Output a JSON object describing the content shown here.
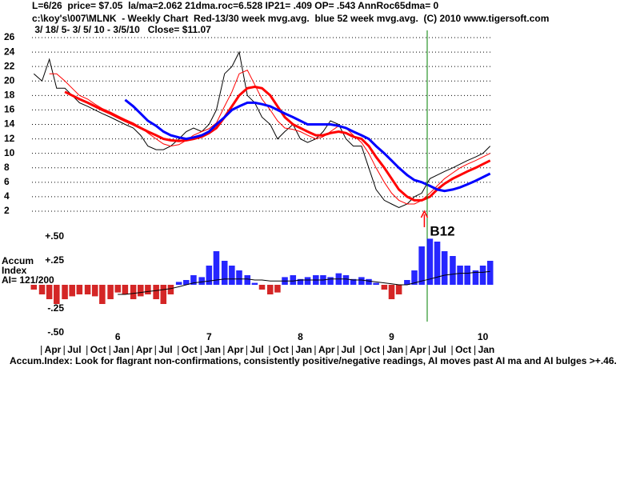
{
  "header": [
    "L=6/26  price= $7.05  la/ma=2.062 21dma.roc=6.528 IP21= .409 OP= .543 AnnRoc65dma= 0",
    "c:\\koy's\\007\\MLNK  - Weekly Chart  Red-13/30 week mvg.avg.  blue 52 week mvg.avg.  (C) 2010 www.tigersoft.com",
    " 3/ 18/ 5- 3/ 5/ 10 - 3/5/10   Close= $11.07"
  ],
  "footer": "Accum.Index: Look for flagrant non-confirmations, consistently positive/negative readings, AI moves past AI ma and AI bulges >+.46.",
  "chart_data": [
    {
      "type": "line",
      "x": [
        5.08,
        5.17,
        5.25,
        5.33,
        5.42,
        5.5,
        5.58,
        5.67,
        5.75,
        5.83,
        5.92,
        6.0,
        6.08,
        6.17,
        6.25,
        6.33,
        6.42,
        6.5,
        6.58,
        6.67,
        6.75,
        6.83,
        6.92,
        7.0,
        7.08,
        7.17,
        7.25,
        7.33,
        7.42,
        7.5,
        7.58,
        7.67,
        7.75,
        7.83,
        7.92,
        8.0,
        8.08,
        8.17,
        8.25,
        8.33,
        8.42,
        8.5,
        8.58,
        8.67,
        8.75,
        8.83,
        8.92,
        9.0,
        9.08,
        9.17,
        9.25,
        9.33,
        9.42,
        9.5,
        9.58,
        9.67,
        9.75,
        9.83,
        9.92,
        10.0,
        10.08
      ],
      "xlim": [
        5.06,
        10.1
      ],
      "ylim": [
        2,
        26
      ],
      "yticks": [
        2,
        4,
        6,
        8,
        10,
        12,
        14,
        16,
        18,
        20,
        22,
        24,
        26
      ],
      "grid": true,
      "vline": {
        "x": 9.39,
        "color": "#008000"
      },
      "series": [
        {
          "color": "#000000",
          "width": 1,
          "values": [
            21,
            20,
            23,
            19,
            19,
            18,
            17,
            16.5,
            16,
            15.5,
            15,
            14.5,
            14,
            13.5,
            12.5,
            11,
            10.5,
            10.5,
            11,
            12,
            13,
            13.5,
            13,
            14,
            16,
            21,
            22,
            24,
            18,
            17,
            15,
            14,
            12,
            13,
            14,
            12,
            11.5,
            12,
            13,
            14.5,
            14,
            12,
            11,
            11,
            8,
            5,
            3.5,
            3,
            2.5,
            3,
            4,
            4.5,
            6.5,
            7,
            7.5,
            8,
            8.5,
            9,
            9.5,
            10,
            11
          ]
        },
        {
          "color": "#ff0000",
          "width": 1,
          "values": [
            null,
            null,
            21,
            21,
            20,
            19,
            18,
            17.5,
            16.8,
            16.2,
            15.7,
            15.2,
            14.7,
            14.2,
            13.6,
            12.8,
            12,
            11.3,
            11,
            11.2,
            11.8,
            12.5,
            13,
            13.4,
            14.2,
            16.5,
            18.5,
            21,
            21.5,
            19.5,
            17.5,
            16,
            14.5,
            13.5,
            13.3,
            13,
            12.5,
            12,
            12.3,
            13,
            13.8,
            13.5,
            12.5,
            11.5,
            10,
            8,
            6,
            4.5,
            3.5,
            3,
            3,
            3.5,
            4.5,
            5.5,
            6.5,
            7.3,
            8,
            8.5,
            9,
            9.5,
            10
          ]
        },
        {
          "color": "#ff0000",
          "width": 3,
          "values": [
            null,
            null,
            null,
            null,
            18.5,
            18,
            17.5,
            17,
            16.5,
            16,
            15.5,
            15,
            14.5,
            14,
            13.5,
            13,
            12.5,
            12,
            11.8,
            11.7,
            11.8,
            12,
            12.3,
            12.8,
            13.5,
            15,
            16.5,
            18,
            19,
            19.2,
            19,
            18,
            16.5,
            15,
            14,
            13.5,
            13,
            12.5,
            12.5,
            12.8,
            13,
            12.8,
            12.3,
            12,
            11,
            9.5,
            8,
            6.5,
            5,
            4,
            3.5,
            3.5,
            4,
            5,
            5.8,
            6.5,
            7,
            7.5,
            8,
            8.5,
            9
          ]
        },
        {
          "color": "#0000ff",
          "width": 3,
          "values": [
            null,
            null,
            null,
            null,
            null,
            null,
            null,
            null,
            null,
            null,
            null,
            null,
            17.4,
            16.5,
            15.5,
            14.5,
            13.8,
            13,
            12.5,
            12.2,
            12,
            12.2,
            12.5,
            13,
            14,
            15,
            16,
            16.5,
            17,
            17,
            16.8,
            16.5,
            16,
            15.5,
            15,
            14.5,
            14,
            14,
            14,
            14,
            13.8,
            13.5,
            13,
            12.5,
            12,
            11,
            10,
            9,
            8,
            7,
            6.3,
            6,
            5.5,
            5,
            4.8,
            5,
            5.3,
            5.7,
            6.2,
            6.7,
            7.2
          ]
        }
      ]
    },
    {
      "type": "bar",
      "labels": [
        "Accum",
        "Index",
        "AI= 121/200"
      ],
      "annotation": {
        "text": "B12",
        "x": 9.42,
        "color": "#ff0000"
      },
      "x": [
        5.08,
        5.17,
        5.25,
        5.33,
        5.42,
        5.5,
        5.58,
        5.67,
        5.75,
        5.83,
        5.92,
        6.0,
        6.08,
        6.17,
        6.25,
        6.33,
        6.42,
        6.5,
        6.58,
        6.67,
        6.75,
        6.83,
        6.92,
        7.0,
        7.08,
        7.17,
        7.25,
        7.33,
        7.42,
        7.5,
        7.58,
        7.67,
        7.75,
        7.83,
        7.92,
        8.0,
        8.08,
        8.17,
        8.25,
        8.33,
        8.42,
        8.5,
        8.58,
        8.67,
        8.75,
        8.83,
        8.92,
        9.0,
        9.08,
        9.17,
        9.25,
        9.33,
        9.42,
        9.5,
        9.58,
        9.67,
        9.75,
        9.83,
        9.92,
        10.0,
        10.08
      ],
      "xlim": [
        5.06,
        10.1
      ],
      "ylim": [
        -0.5,
        0.5
      ],
      "yticks": [
        {
          "value": 0.5,
          "label": "+.50"
        },
        {
          "value": 0.25,
          "label": "+.25"
        },
        {
          "value": -0.25,
          "label": "-.25"
        },
        {
          "value": -0.5,
          "label": "-.50"
        }
      ],
      "xticks": [
        6,
        7,
        8,
        9,
        10
      ],
      "month_ticks": [
        {
          "value": 5.25,
          "label": "Apr"
        },
        {
          "value": 5.5,
          "label": "Jul"
        },
        {
          "value": 5.75,
          "label": "Oct"
        },
        {
          "value": 6.0,
          "label": "Jan"
        },
        {
          "value": 6.25,
          "label": "Apr"
        },
        {
          "value": 6.5,
          "label": "Jul"
        },
        {
          "value": 6.75,
          "label": "Oct"
        },
        {
          "value": 7.0,
          "label": "Jan"
        },
        {
          "value": 7.25,
          "label": "Apr"
        },
        {
          "value": 7.5,
          "label": "Jul"
        },
        {
          "value": 7.75,
          "label": "Oct"
        },
        {
          "value": 8.0,
          "label": "Jan"
        },
        {
          "value": 8.25,
          "label": "Apr"
        },
        {
          "value": 8.5,
          "label": "Jul"
        },
        {
          "value": 8.75,
          "label": "Oct"
        },
        {
          "value": 9.0,
          "label": "Jan"
        },
        {
          "value": 9.25,
          "label": "Apr"
        },
        {
          "value": 9.5,
          "label": "Jul"
        },
        {
          "value": 9.75,
          "label": "Oct"
        },
        {
          "value": 10.0,
          "label": "Jan"
        }
      ],
      "series": [
        {
          "color": "#0000ff",
          "negative_color": "#cc0000",
          "values": [
            -0.05,
            -0.1,
            -0.15,
            -0.2,
            -0.15,
            -0.12,
            -0.1,
            -0.1,
            -0.12,
            -0.2,
            -0.15,
            -0.08,
            -0.1,
            -0.15,
            -0.12,
            -0.1,
            -0.15,
            -0.2,
            -0.1,
            0.03,
            0.05,
            0.1,
            0.08,
            0.2,
            0.35,
            0.25,
            0.2,
            0.15,
            0.1,
            0.02,
            -0.05,
            -0.1,
            -0.08,
            0.08,
            0.1,
            0.06,
            0.08,
            0.1,
            0.1,
            0.08,
            0.12,
            0.1,
            0.06,
            0.08,
            0.06,
            0.02,
            -0.05,
            -0.15,
            -0.1,
            0.05,
            0.15,
            0.4,
            0.48,
            0.45,
            0.35,
            0.3,
            0.2,
            0.2,
            0.15,
            0.2,
            0.25
          ]
        },
        {
          "type": "line",
          "color": "#000000",
          "values": [
            null,
            null,
            null,
            null,
            null,
            null,
            null,
            null,
            null,
            null,
            null,
            -0.1,
            -0.1,
            -0.09,
            -0.08,
            -0.07,
            -0.06,
            -0.05,
            -0.04,
            -0.02,
            0,
            0.02,
            0.03,
            0.04,
            0.05,
            0.06,
            0.06,
            0.06,
            0.06,
            0.05,
            0.05,
            0.04,
            0.04,
            0.04,
            0.04,
            0.05,
            0.05,
            0.05,
            0.05,
            0.06,
            0.06,
            0.06,
            0.05,
            0.05,
            0.04,
            0.03,
            0.02,
            0.01,
            0,
            0,
            0.02,
            0.04,
            0.06,
            0.08,
            0.1,
            0.11,
            0.12,
            0.12,
            0.13,
            0.13,
            0.14
          ]
        }
      ]
    }
  ]
}
